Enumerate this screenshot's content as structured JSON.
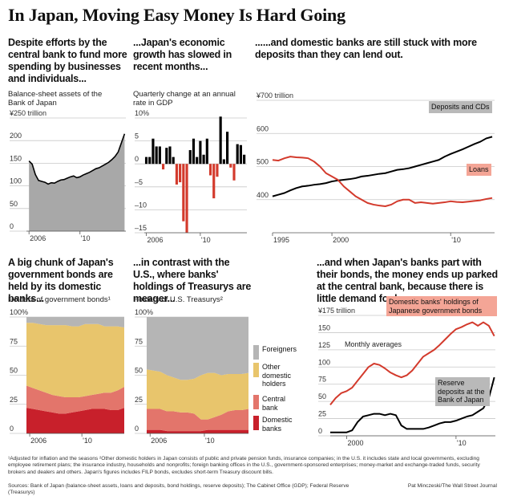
{
  "title": "In Japan, Moving Easy Money Is Hard Going",
  "footnote": "¹Adjusted for inflation and the seasons  ²Other domestic holders in Japan consists of public and private pension funds, insurance companies; in the U.S. it includes state and local governments, excluding employee retirement plans; the insurance industry, households and nonprofits; foreign banking offices in the U.S., government-sponsored enterprises; money-market and exchange-traded funds, security brokers and dealers and others. Japan's figures includes FILP bonds, excludes short-term Treasury discount bills.",
  "sources": "Sources: Bank of Japan (balance-sheet assets, loans and deposits, bond holdings, reserve deposits); The Cabinet Office (GDP); Federal Reserve (Treasurys)",
  "credit": "Pat Minczeski/The Wall Street Journal",
  "chart_data": [
    {
      "type": "area",
      "heading": "Despite efforts by the central bank to fund more spending by businesses and individuals...",
      "subtitle": "Balance-sheet assets of the Bank of Japan",
      "color": "#a8a8a8",
      "line_color": "#000000",
      "x": [
        2006,
        2006.25,
        2006.5,
        2006.75,
        2007,
        2007.25,
        2007.5,
        2007.75,
        2008,
        2008.25,
        2008.5,
        2008.75,
        2009,
        2009.25,
        2009.5,
        2009.75,
        2010,
        2010.25,
        2010.5,
        2010.75,
        2011,
        2011.25,
        2011.5,
        2011.75,
        2012,
        2012.25,
        2012.5,
        2012.75,
        2013,
        2013.25,
        2013.5
      ],
      "values": [
        155,
        148,
        125,
        112,
        110,
        108,
        104,
        107,
        106,
        110,
        113,
        114,
        117,
        120,
        122,
        118,
        120,
        124,
        127,
        130,
        134,
        138,
        140,
        144,
        148,
        152,
        158,
        165,
        175,
        195,
        215
      ],
      "xlim": [
        2005.8,
        2013.6
      ],
      "xticks": [
        2006,
        {
          "value": 2010,
          "label": "'10"
        }
      ],
      "ylim": [
        0,
        250
      ],
      "yticks": [
        {
          "value": 250,
          "label": "¥250 trillion"
        },
        200,
        150,
        100,
        50,
        0
      ],
      "grid": true
    },
    {
      "type": "bar",
      "heading": "...Japan's economic growth has slowed in recent months...",
      "subtitle": "Quarterly change at an annual rate in GDP",
      "positive_color": "#000000",
      "negative_color": "#d33a2c",
      "x": [
        2006,
        2006.25,
        2006.5,
        2006.75,
        2007,
        2007.25,
        2007.5,
        2007.75,
        2008,
        2008.25,
        2008.5,
        2008.75,
        2009,
        2009.25,
        2009.5,
        2009.75,
        2010,
        2010.25,
        2010.5,
        2010.75,
        2011,
        2011.25,
        2011.5,
        2011.75,
        2012,
        2012.25,
        2012.5,
        2012.75,
        2013,
        2013.25
      ],
      "values": [
        1.5,
        1.5,
        5.5,
        3.8,
        3.8,
        -1.2,
        3.5,
        3.8,
        1.5,
        -4.5,
        -4.0,
        -12.5,
        -15.0,
        3.0,
        5.5,
        1.5,
        5.0,
        2.0,
        5.5,
        -2.5,
        -7.5,
        -2.8,
        10.3,
        1.0,
        7.0,
        -0.8,
        -3.6,
        4.3,
        4.1,
        2.0
      ],
      "xlim": [
        2005.85,
        2013.45
      ],
      "xticks": [
        2006,
        {
          "value": 2010,
          "label": "'10"
        }
      ],
      "ylim": [
        -15,
        10
      ],
      "yticks": [
        {
          "value": 10,
          "label": "10%"
        },
        5,
        0,
        {
          "value": -5,
          "label": "–5"
        },
        {
          "value": -10,
          "label": "–10"
        },
        {
          "value": -15,
          "label": "–15"
        }
      ],
      "grid": true
    },
    {
      "type": "line",
      "heading": "......and domestic banks are still stuck with more deposits than they can lend out.",
      "x": [
        1995,
        1995.5,
        1996,
        1996.5,
        1997,
        1997.5,
        1998,
        1998.5,
        1999,
        1999.5,
        2000,
        2000.5,
        2001,
        2001.5,
        2002,
        2002.5,
        2003,
        2003.5,
        2004,
        2004.5,
        2005,
        2005.5,
        2006,
        2006.5,
        2007,
        2007.5,
        2008,
        2008.5,
        2009,
        2009.5,
        2010,
        2010.5,
        2011,
        2011.5,
        2012,
        2012.5,
        2013,
        2013.5
      ],
      "series": [
        {
          "name": "Deposits and CDs",
          "color": "#000000",
          "values": [
            410,
            415,
            420,
            428,
            435,
            440,
            442,
            445,
            447,
            450,
            455,
            458,
            460,
            462,
            465,
            470,
            472,
            475,
            478,
            480,
            485,
            490,
            492,
            495,
            500,
            505,
            510,
            515,
            520,
            530,
            538,
            545,
            552,
            560,
            568,
            575,
            585,
            590
          ]
        },
        {
          "name": "Loans",
          "color": "#d33a2c",
          "values": [
            520,
            518,
            525,
            530,
            528,
            527,
            525,
            515,
            500,
            480,
            470,
            460,
            440,
            425,
            410,
            400,
            390,
            385,
            382,
            380,
            385,
            395,
            400,
            400,
            390,
            392,
            390,
            388,
            390,
            392,
            395,
            393,
            392,
            394,
            396,
            398,
            402,
            405
          ]
        }
      ],
      "xlim": [
        1995,
        2013.7
      ],
      "xticks": [
        1995,
        2000,
        {
          "value": 2010,
          "label": "'10"
        }
      ],
      "ylim": [
        300,
        700
      ],
      "yticks": [
        {
          "value": 700,
          "label": "¥700 trillion"
        },
        600,
        500,
        400
      ],
      "grid": true
    },
    {
      "type": "stacked_area",
      "heading": "A big chunk of Japan's government bonds are held by its domestic banks...",
      "subtitle": "Holders of government bonds¹",
      "x": [
        2005.75,
        2006.25,
        2006.75,
        2007.25,
        2007.75,
        2008.25,
        2008.75,
        2009.25,
        2009.75,
        2010.25,
        2010.75,
        2011.25,
        2011.75,
        2012.25,
        2012.75,
        2013.25
      ],
      "series": [
        {
          "color": "#c8202b",
          "values": [
            22,
            21,
            20,
            19,
            18,
            17,
            17,
            18,
            19,
            20,
            21,
            21,
            21,
            20,
            20,
            22
          ]
        },
        {
          "color": "#e3756b",
          "values": [
            19,
            18,
            17,
            16,
            15,
            15,
            14,
            13,
            12,
            12,
            12,
            13,
            14,
            15,
            17,
            18
          ]
        },
        {
          "color": "#e8c56c",
          "values": [
            54,
            56,
            57,
            58,
            60,
            61,
            62,
            61,
            61,
            62,
            61,
            60,
            57,
            57,
            55,
            51
          ]
        },
        {
          "color": "#b5b5b5",
          "values": [
            5,
            5,
            6,
            7,
            7,
            7,
            7,
            8,
            8,
            6,
            6,
            6,
            8,
            8,
            8,
            9
          ]
        }
      ],
      "xlim": [
        2005.75,
        2013.25
      ],
      "xticks": [
        2006,
        {
          "value": 2010,
          "label": "'10"
        }
      ],
      "ylim": [
        0,
        100
      ],
      "yticks": [
        {
          "value": 100,
          "label": "100%"
        },
        75,
        50,
        25,
        0
      ],
      "grid": true
    },
    {
      "type": "stacked_area",
      "heading": "...in contrast with the U.S., where banks' holdings of Treasurys are meager...",
      "subtitle": "Holders of U.S. Treasurys²",
      "x": [
        2005.75,
        2006.25,
        2006.75,
        2007.25,
        2007.75,
        2008.25,
        2008.75,
        2009.25,
        2009.75,
        2010.25,
        2010.75,
        2011.25,
        2011.75,
        2012.25,
        2012.75,
        2013.25
      ],
      "series": [
        {
          "name": "Domestic banks",
          "color": "#c8202b",
          "values": [
            3,
            3,
            3,
            2,
            2,
            2,
            2,
            2,
            2,
            3,
            3,
            3,
            3,
            3,
            3,
            3
          ]
        },
        {
          "name": "Central bank",
          "color": "#e3756b",
          "values": [
            18,
            18,
            18,
            17,
            17,
            16,
            16,
            15,
            10,
            9,
            11,
            13,
            16,
            17,
            17,
            18
          ]
        },
        {
          "name": "Other domestic holders",
          "color": "#e8c56c",
          "values": [
            34,
            33,
            32,
            31,
            29,
            28,
            28,
            30,
            38,
            40,
            38,
            34,
            32,
            31,
            31,
            31
          ]
        },
        {
          "name": "Foreigners",
          "color": "#b5b5b5",
          "values": [
            45,
            46,
            47,
            50,
            52,
            54,
            54,
            53,
            50,
            48,
            48,
            50,
            49,
            49,
            49,
            48
          ]
        }
      ],
      "xlim": [
        2005.75,
        2013.25
      ],
      "xticks": [
        2006,
        {
          "value": 2010,
          "label": "'10"
        }
      ],
      "ylim": [
        0,
        100
      ],
      "yticks": [
        {
          "value": 100,
          "label": "100%"
        },
        75,
        50,
        25,
        0
      ],
      "grid": true
    },
    {
      "type": "line",
      "heading": "...and when Japan's banks part with their bonds, the money ends up parked at the central bank, because there is little demand for loans.",
      "annotation": "Monthly averages",
      "x": [
        1998.5,
        1999,
        1999.5,
        2000,
        2000.5,
        2001,
        2001.5,
        2002,
        2002.5,
        2003,
        2003.5,
        2004,
        2004.5,
        2005,
        2005.5,
        2006,
        2006.5,
        2007,
        2007.5,
        2008,
        2008.5,
        2009,
        2009.5,
        2010,
        2010.5,
        2011,
        2011.5,
        2012,
        2012.5,
        2013,
        2013.5
      ],
      "series": [
        {
          "name": "Domestic banks' holdings of Japanese government bonds",
          "color": "#d33a2c",
          "values": [
            45,
            55,
            62,
            65,
            70,
            80,
            90,
            100,
            105,
            103,
            98,
            92,
            88,
            85,
            88,
            95,
            105,
            115,
            120,
            125,
            132,
            140,
            148,
            155,
            158,
            162,
            165,
            160,
            165,
            160,
            145
          ]
        },
        {
          "name": "Reserve deposits at the Bank of Japan",
          "color": "#000000",
          "values": [
            5,
            5,
            5,
            5,
            8,
            20,
            28,
            30,
            32,
            32,
            30,
            32,
            30,
            15,
            10,
            10,
            10,
            10,
            12,
            15,
            18,
            20,
            20,
            22,
            25,
            28,
            30,
            35,
            40,
            55,
            85
          ]
        }
      ],
      "xlim": [
        1998.5,
        2013.6
      ],
      "xticks": [
        2000,
        {
          "value": 2010,
          "label": "'10"
        }
      ],
      "ylim": [
        0,
        175
      ],
      "yticks": [
        {
          "value": 175,
          "label": "¥175 trillion"
        },
        150,
        125,
        100,
        75,
        50,
        25,
        0
      ],
      "grid": true
    }
  ]
}
